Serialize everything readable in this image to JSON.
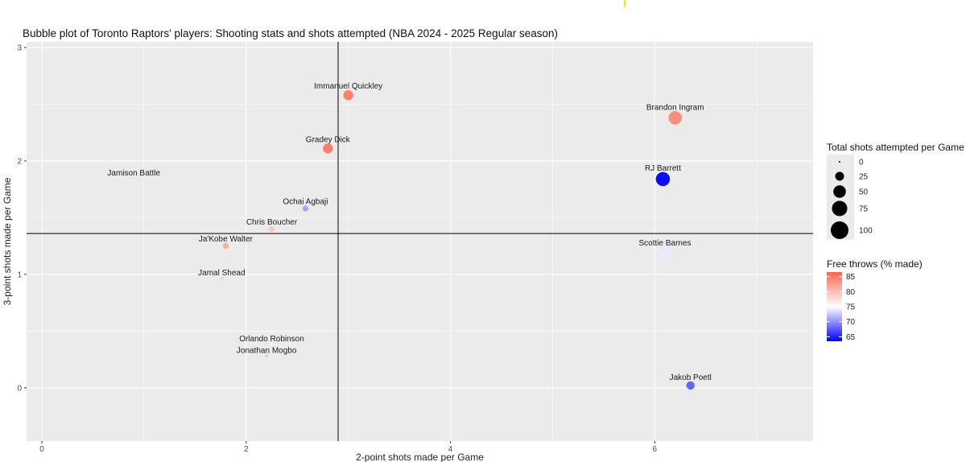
{
  "chart_data": {
    "type": "scatter",
    "title": "Bubble plot of Toronto Raptors' players: Shooting stats and shots attempted (NBA 2024 - 2025 Regular season)",
    "xlabel": "2-point shots made per Game",
    "ylabel": "3-point shots made per Game",
    "xlim": [
      -0.15,
      7.55
    ],
    "ylim": [
      -0.47,
      3.05
    ],
    "x_ticks": [
      0,
      2,
      4,
      6
    ],
    "y_ticks": [
      0,
      1,
      2,
      3
    ],
    "reference_lines": {
      "x": 2.9,
      "y": 1.36
    },
    "grid": true,
    "points": [
      {
        "player": "Immanuel Quickley",
        "x": 3.0,
        "y": 2.58,
        "shots": 30,
        "ft_pct": 84.5
      },
      {
        "player": "Brandon Ingram",
        "x": 6.2,
        "y": 2.38,
        "shots": 55,
        "ft_pct": 83.5
      },
      {
        "player": "Gradey Dick",
        "x": 2.8,
        "y": 2.11,
        "shots": 30,
        "ft_pct": 84.5
      },
      {
        "player": "Jamison Battle",
        "x": 0.9,
        "y": 1.85,
        "shots": 0,
        "ft_pct": 78
      },
      {
        "player": "RJ Barrett",
        "x": 6.08,
        "y": 1.84,
        "shots": 60,
        "ft_pct": 64
      },
      {
        "player": "Ochai Agbaji",
        "x": 2.58,
        "y": 1.58,
        "shots": 10,
        "ft_pct": 71
      },
      {
        "player": "Chris Boucher",
        "x": 2.25,
        "y": 1.4,
        "shots": 10,
        "ft_pct": 79
      },
      {
        "player": "Ja'Kobe Walter",
        "x": 1.8,
        "y": 1.25,
        "shots": 10,
        "ft_pct": 81
      },
      {
        "player": "Scottie Barnes",
        "x": 6.1,
        "y": 1.18,
        "shots": 60,
        "ft_pct": 74
      },
      {
        "player": "Jamal Shead",
        "x": 1.76,
        "y": 0.96,
        "shots": 5,
        "ft_pct": 78
      },
      {
        "player": "Orlando Robinson",
        "x": 2.25,
        "y": 0.38,
        "shots": 5,
        "ft_pct": 76
      },
      {
        "player": "Jonathan Mogbo",
        "x": 2.2,
        "y": 0.28,
        "shots": 3,
        "ft_pct": 73
      },
      {
        "player": "Jakob Poetl",
        "x": 6.35,
        "y": 0.02,
        "shots": 20,
        "ft_pct": 68
      }
    ],
    "legend": {
      "placement": "right",
      "size_title": "Total shots attempted per Game",
      "size_values": [
        0,
        25,
        50,
        75,
        100
      ],
      "size_labels": [
        "0",
        "25",
        "50",
        "75",
        "100"
      ],
      "color_title": "Free throws (% made)",
      "color_values": [
        65,
        70,
        75,
        80,
        85
      ],
      "color_labels": [
        "65",
        "70",
        "75",
        "80",
        "85"
      ],
      "color_range": [
        63.5,
        86.5
      ]
    },
    "colors": {
      "low": "#0000ff",
      "mid": "#ffffff",
      "high": "#f8674f",
      "panel": "#ebebeb",
      "grid": "#ffffff"
    }
  }
}
